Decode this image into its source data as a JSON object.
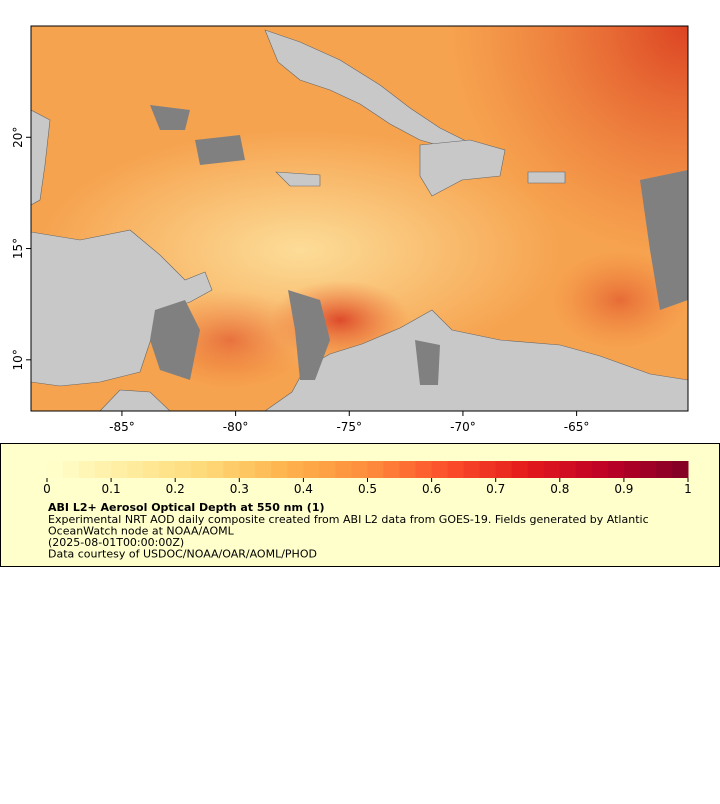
{
  "map": {
    "xlim": [
      -89,
      -60.1
    ],
    "ylim": [
      7.7,
      25
    ],
    "xticks": [
      {
        "value": -85,
        "label": "-85°"
      },
      {
        "value": -80,
        "label": "-80°"
      },
      {
        "value": -75,
        "label": "-75°"
      },
      {
        "value": -70,
        "label": "-70°"
      },
      {
        "value": -65,
        "label": "-65°"
      }
    ],
    "yticks": [
      {
        "value": 10,
        "label": "10°"
      },
      {
        "value": 15,
        "label": "15°"
      },
      {
        "value": 20,
        "label": "20°"
      }
    ]
  },
  "colorbar": {
    "lim": [
      0,
      1
    ],
    "ticks": [
      0,
      0.1,
      0.2,
      0.3,
      0.4,
      0.5,
      0.6,
      0.7,
      0.8,
      0.9,
      1
    ]
  },
  "caption": {
    "title": "ABI L2+ Aerosol Optical Depth at 550 nm (1)",
    "lines": [
      "Experimental NRT AOD daily composite created from ABI L2 data from GOES-19. Fields generated by Atlantic",
      "OceanWatch node at NOAA/AOML",
      "(2025-08-01T00:00:00Z)",
      "Data courtesy of USDOC/NOAA/OAR/AOML/PHOD"
    ]
  }
}
